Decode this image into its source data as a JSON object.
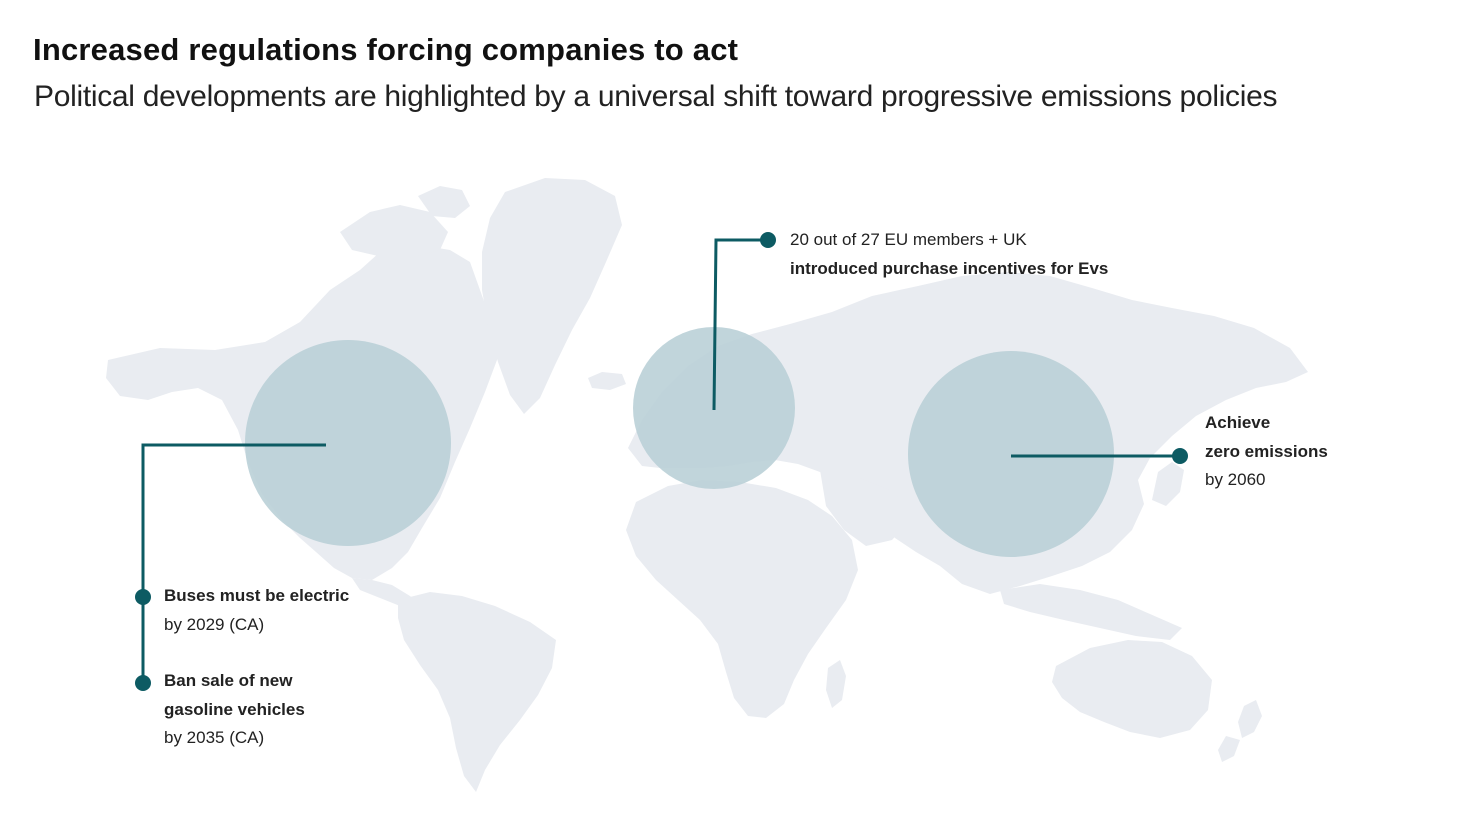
{
  "header": {
    "title": "Increased regulations forcing companies to act",
    "subtitle": "Political developments are highlighted by a universal shift toward progressive emissions policies"
  },
  "colors": {
    "land": "#e9ecf1",
    "highlight": "#b8cfd6",
    "accent": "#0d5b63"
  },
  "callouts": {
    "europe": {
      "line1": "20 out of 27 EU members + UK",
      "line2": "introduced purchase incentives for Evs"
    },
    "china": {
      "line1": "Achieve",
      "line2": "zero emissions",
      "line3": "by 2060"
    },
    "us_buses": {
      "line1": "Buses must be electric",
      "line2": "by 2029 (CA)"
    },
    "us_gasoline": {
      "line1": "Ban sale of new",
      "line2": "gasoline vehicles",
      "line3": "by 2035 (CA)"
    }
  }
}
